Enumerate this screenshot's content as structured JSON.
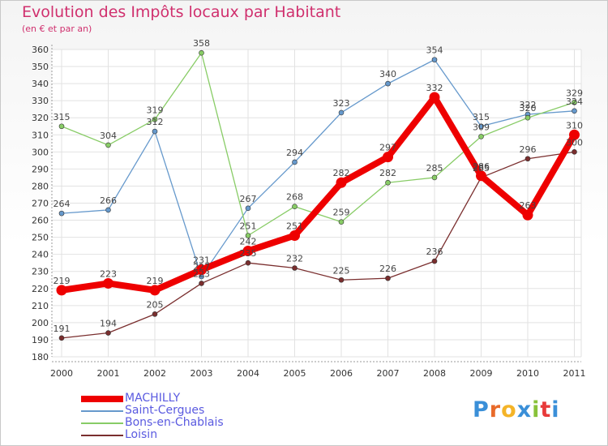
{
  "chart_data": {
    "type": "line",
    "title": "Evolution des Impôts locaux par Habitant",
    "subtitle": "(en € et par an)",
    "xlabel": "",
    "ylabel": "",
    "categories": [
      "2000",
      "2001",
      "2002",
      "2003",
      "2004",
      "2005",
      "2006",
      "2007",
      "2008",
      "2009",
      "2010",
      "2011"
    ],
    "ylim": [
      180,
      360
    ],
    "yticks": [
      180,
      190,
      200,
      210,
      220,
      230,
      240,
      250,
      260,
      270,
      280,
      290,
      300,
      310,
      320,
      330,
      340,
      350,
      360
    ],
    "grid": true,
    "legend_position": "bottom-left",
    "series": [
      {
        "name": "MACHILLY",
        "color": "#ee0000",
        "values": [
          219,
          223,
          219,
          231,
          242,
          251,
          282,
          297,
          332,
          286,
          263,
          310
        ],
        "labels": [
          "219",
          "223",
          "219",
          "231",
          "242",
          "251",
          "282",
          "297",
          "332",
          "286",
          "263",
          "310"
        ]
      },
      {
        "name": "Saint-Cergues",
        "color": "#6699cc",
        "values": [
          264,
          266,
          312,
          227,
          267,
          294,
          323,
          340,
          354,
          315,
          322,
          324
        ],
        "labels": [
          "264",
          "266",
          "312",
          "227",
          "267",
          "294",
          "323",
          "340",
          "354",
          "315",
          "322",
          "324"
        ]
      },
      {
        "name": "Bons-en-Chablais",
        "color": "#88cc66",
        "values": [
          315,
          304,
          319,
          358,
          251,
          268,
          259,
          282,
          285,
          309,
          320,
          329
        ],
        "labels": [
          "315",
          "304",
          "319",
          "358",
          "251",
          "268",
          "259",
          "282",
          "285",
          "309",
          "320",
          "329"
        ]
      },
      {
        "name": "Loisin",
        "color": "#7a2e2e",
        "values": [
          191,
          194,
          205,
          223,
          235,
          232,
          225,
          226,
          236,
          285,
          296,
          300
        ],
        "labels": [
          "191",
          "194",
          "205",
          "223",
          "235",
          "232",
          "225",
          "226",
          "236",
          "285",
          "296",
          "300"
        ]
      }
    ]
  },
  "logo": {
    "letters": [
      "P",
      "r",
      "o",
      "x",
      "i",
      "t",
      "i"
    ],
    "colors": [
      "#3a8fd8",
      "#e86a2a",
      "#f4b428",
      "#3a8fd8",
      "#88c23a",
      "#e83a3a",
      "#3a8fd8"
    ]
  }
}
